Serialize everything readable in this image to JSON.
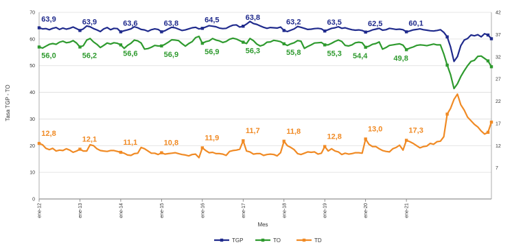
{
  "chart_data": {
    "type": "line",
    "xlabel": "Mes",
    "ylabel": "Tasa TGP - TO",
    "y2label": "",
    "ylim": [
      0,
      70
    ],
    "y2lim": [
      0,
      42
    ],
    "yticks": [
      "0",
      "10",
      "20",
      "30",
      "40",
      "50",
      "60",
      "70"
    ],
    "y2ticks": [
      "7",
      "12",
      "17",
      "22",
      "27",
      "32",
      "37",
      "42"
    ],
    "xticks": [
      "ene-12",
      "ene-13",
      "ene-14",
      "ene-15",
      "ene-16",
      "ene-17",
      "ene-18",
      "ene-19",
      "ene-20",
      "ene-21"
    ],
    "colors": {
      "TGP": "#1f2a8c",
      "TO": "#2e9a2e",
      "TD": "#f08a24"
    },
    "legend": {
      "position": "bottom",
      "entries": [
        "TGP",
        "TO",
        "TD"
      ]
    },
    "series": [
      {
        "name": "TGP",
        "axis": "left",
        "color": "#1f2a8c",
        "values": [
          64.2,
          63.8,
          63.9,
          63.5,
          64.0,
          64.3,
          63.6,
          64.1,
          63.7,
          64.0,
          64.5,
          63.9,
          63.2,
          63.8,
          64.9,
          64.6,
          63.9,
          63.4,
          62.8,
          63.8,
          64.3,
          63.5,
          64.0,
          63.9,
          62.7,
          63.1,
          63.4,
          63.8,
          64.6,
          64.2,
          63.6,
          63.4,
          62.9,
          63.5,
          63.8,
          63.6,
          62.7,
          63.1,
          63.8,
          64.4,
          64.2,
          63.7,
          63.2,
          63.4,
          63.8,
          64.2,
          64.4,
          63.8,
          64.0,
          64.5,
          65.0,
          64.8,
          64.6,
          64.1,
          63.9,
          64.0,
          64.7,
          65.2,
          65.3,
          64.5,
          64.8,
          65.6,
          66.6,
          65.8,
          65.5,
          64.9,
          64.4,
          64.0,
          64.3,
          64.2,
          64.1,
          64.5,
          63.2,
          62.8,
          63.3,
          63.8,
          64.7,
          64.4,
          64.0,
          63.6,
          63.7,
          63.9,
          64.0,
          63.8,
          63.0,
          63.5,
          64.0,
          64.2,
          64.6,
          64.0,
          64.2,
          63.8,
          63.5,
          63.3,
          63.4,
          63.2,
          62.6,
          62.9,
          63.4,
          63.7,
          64.0,
          63.3,
          63.5,
          64.0,
          63.8,
          63.6,
          63.7,
          63.5,
          62.7,
          63.0,
          63.4,
          63.6,
          63.8,
          63.5,
          63.3,
          63.1,
          63.0,
          63.2,
          63.5,
          62.5,
          60.8,
          57.0,
          51.6,
          53.4,
          57.5,
          59.6,
          60.2,
          61.5,
          61.2,
          61.6,
          60.8,
          62.0,
          61.5,
          60.1
        ]
      },
      {
        "name": "TO",
        "axis": "left",
        "color": "#2e9a2e",
        "values": [
          57.0,
          56.6,
          57.3,
          58.0,
          58.3,
          58.0,
          58.8,
          59.2,
          58.6,
          58.8,
          59.4,
          58.5,
          57.0,
          57.5,
          59.6,
          60.2,
          58.9,
          58.0,
          56.8,
          57.6,
          58.5,
          58.1,
          58.6,
          58.4,
          57.8,
          56.5,
          57.6,
          58.4,
          59.6,
          59.3,
          58.5,
          56.2,
          56.4,
          56.9,
          57.6,
          57.4,
          57.4,
          58.0,
          58.8,
          59.7,
          59.6,
          59.4,
          58.3,
          57.3,
          58.3,
          59.0,
          60.5,
          61.0,
          58.4,
          59.0,
          59.3,
          60.2,
          59.6,
          59.3,
          58.7,
          59.1,
          59.9,
          60.3,
          60.0,
          59.4,
          58.8,
          58.3,
          60.2,
          59.4,
          58.1,
          57.4,
          57.8,
          58.8,
          58.9,
          59.5,
          59.3,
          59.0,
          58.2,
          57.6,
          58.2,
          58.6,
          59.4,
          59.2,
          56.5,
          57.2,
          57.8,
          58.5,
          58.6,
          58.7,
          57.8,
          57.8,
          58.4,
          59.1,
          59.6,
          59.1,
          57.6,
          57.4,
          57.8,
          58.6,
          58.8,
          58.6,
          56.9,
          57.3,
          58.0,
          58.3,
          58.9,
          56.2,
          56.8,
          57.6,
          57.8,
          58.0,
          58.2,
          57.7,
          56.0,
          56.6,
          57.0,
          57.6,
          57.8,
          57.7,
          57.5,
          57.8,
          58.1,
          57.8,
          57.8,
          54.4,
          50.2,
          46.6,
          41.4,
          43.2,
          45.9,
          48.1,
          50.0,
          51.6,
          52.0,
          53.5,
          53.6,
          52.7,
          51.8,
          49.6
        ]
      },
      {
        "name": "TD",
        "axis": "right",
        "color": "#f08a24",
        "values": [
          12.5,
          12.2,
          11.4,
          11.1,
          11.4,
          10.8,
          11.0,
          10.9,
          11.3,
          11.0,
          10.5,
          10.8,
          11.2,
          10.8,
          10.8,
          12.2,
          12.0,
          11.3,
          10.9,
          10.8,
          10.7,
          10.9,
          10.9,
          10.7,
          10.5,
          10.3,
          9.9,
          9.8,
          10.2,
          10.3,
          11.6,
          11.3,
          10.8,
          10.3,
          10.3,
          10.0,
          10.4,
          10.1,
          10.2,
          10.3,
          10.4,
          10.2,
          10.0,
          9.9,
          9.7,
          10.0,
          10.1,
          9.3,
          11.5,
          10.9,
          10.4,
          10.5,
          10.2,
          10.2,
          10.1,
          9.8,
          10.7,
          10.9,
          11.0,
          11.2,
          13.1,
          10.8,
          10.6,
          10.1,
          10.2,
          10.2,
          9.8,
          10.0,
          10.1,
          10.0,
          9.7,
          10.4,
          13.0,
          12.0,
          11.6,
          11.1,
          10.2,
          10.0,
          10.3,
          10.6,
          10.5,
          10.6,
          10.1,
          10.3,
          11.8,
          10.8,
          11.3,
          10.8,
          10.6,
          10.0,
          10.3,
          10.1,
          10.2,
          10.4,
          10.4,
          10.3,
          13.5,
          12.3,
          11.8,
          11.8,
          11.3,
          10.9,
          10.7,
          10.6,
          11.3,
          11.6,
          12.1,
          11.0,
          13.2,
          12.9,
          12.5,
          12.0,
          11.5,
          11.8,
          11.9,
          12.5,
          12.3,
          12.9,
          13.0,
          14.0,
          19.1,
          20.4,
          22.4,
          23.6,
          21.2,
          20.0,
          18.4,
          17.6,
          16.8,
          16.2,
          15.3,
          14.6,
          15.0,
          17.3
        ]
      }
    ],
    "annotations": {
      "TGP": [
        {
          "index": 0,
          "text": "63,9"
        },
        {
          "index": 12,
          "text": "63,9"
        },
        {
          "index": 24,
          "text": "63,6"
        },
        {
          "index": 36,
          "text": "63,8"
        },
        {
          "index": 48,
          "text": "64,5"
        },
        {
          "index": 60,
          "text": "63,8"
        },
        {
          "index": 72,
          "text": "63,2"
        },
        {
          "index": 84,
          "text": "63,5"
        },
        {
          "index": 96,
          "text": "62,5"
        },
        {
          "index": 108,
          "text": "60,1"
        }
      ],
      "TO": [
        {
          "index": 0,
          "text": "56,0"
        },
        {
          "index": 12,
          "text": "56,2"
        },
        {
          "index": 24,
          "text": "56,6"
        },
        {
          "index": 36,
          "text": "56,9"
        },
        {
          "index": 48,
          "text": "56,9"
        },
        {
          "index": 60,
          "text": "56,3"
        },
        {
          "index": 72,
          "text": "55,8"
        },
        {
          "index": 84,
          "text": "55,3"
        },
        {
          "index": 96,
          "text": "54,4"
        },
        {
          "index": 108,
          "text": "49,8"
        }
      ],
      "TD": [
        {
          "index": 0,
          "text": "12,8"
        },
        {
          "index": 12,
          "text": "12,1"
        },
        {
          "index": 24,
          "text": "11,1"
        },
        {
          "index": 36,
          "text": "10,8"
        },
        {
          "index": 48,
          "text": "11,9"
        },
        {
          "index": 60,
          "text": "11,7"
        },
        {
          "index": 72,
          "text": "11,8"
        },
        {
          "index": 84,
          "text": "12,8"
        },
        {
          "index": 96,
          "text": "13,0"
        },
        {
          "index": 108,
          "text": "17,3"
        }
      ]
    }
  }
}
